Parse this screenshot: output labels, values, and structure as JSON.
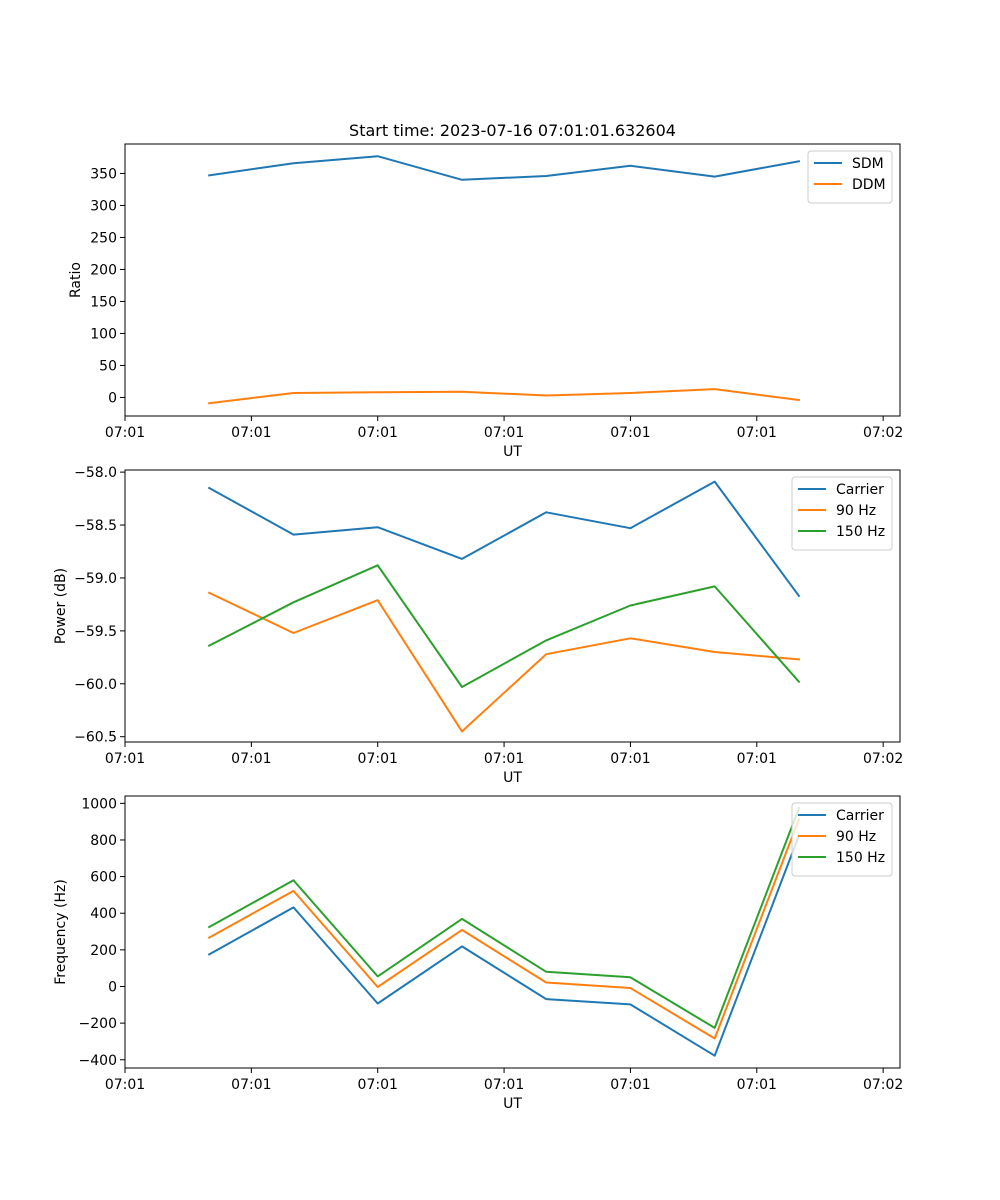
{
  "chart_data": [
    {
      "type": "line",
      "title": "Start time: 2023-07-16 07:01:01.632604",
      "xlabel": "UT",
      "ylabel": "Ratio",
      "xlim": [
        0,
        9.2
      ],
      "ylim": [
        -29,
        396
      ],
      "x": [
        1,
        2,
        3,
        4,
        5,
        6,
        7,
        8
      ],
      "xticks": [
        0,
        1.5,
        3,
        4.5,
        6,
        7.5,
        9
      ],
      "xtick_labels": [
        "07:01",
        "07:01",
        "07:01",
        "07:01",
        "07:01",
        "07:01",
        "07:02"
      ],
      "yticks": [
        0,
        50,
        100,
        150,
        200,
        250,
        300,
        350
      ],
      "legend_position": "top-right",
      "series": [
        {
          "name": "SDM",
          "color": "#1f77b4",
          "values": [
            347,
            366,
            377,
            340,
            346,
            362,
            345,
            369
          ]
        },
        {
          "name": "DDM",
          "color": "#ff7f0e",
          "values": [
            -9,
            7,
            8,
            9,
            3,
            7,
            13,
            -4
          ]
        }
      ]
    },
    {
      "type": "line",
      "title": "",
      "xlabel": "UT",
      "ylabel": "Power (dB)",
      "xlim": [
        0,
        9.2
      ],
      "ylim": [
        -60.55,
        -57.98
      ],
      "x": [
        1,
        2,
        3,
        4,
        5,
        6,
        7,
        8
      ],
      "xticks": [
        0,
        1.5,
        3,
        4.5,
        6,
        7.5,
        9
      ],
      "xtick_labels": [
        "07:01",
        "07:01",
        "07:01",
        "07:01",
        "07:01",
        "07:01",
        "07:02"
      ],
      "yticks": [
        -60.5,
        -60.0,
        -59.5,
        -59.0,
        -58.5,
        -58.0
      ],
      "ytick_labels": [
        "−60.5",
        "−60.0",
        "−59.5",
        "−59.0",
        "−58.5",
        "−58.0"
      ],
      "legend_position": "top-right",
      "series": [
        {
          "name": "Carrier",
          "color": "#1f77b4",
          "values": [
            -58.15,
            -58.59,
            -58.52,
            -58.82,
            -58.38,
            -58.53,
            -58.09,
            -59.17
          ]
        },
        {
          "name": "90 Hz",
          "color": "#ff7f0e",
          "values": [
            -59.14,
            -59.52,
            -59.21,
            -60.45,
            -59.72,
            -59.57,
            -59.7,
            -59.77
          ]
        },
        {
          "name": "150 Hz",
          "color": "#2ca02c",
          "values": [
            -59.64,
            -59.23,
            -58.88,
            -60.03,
            -59.59,
            -59.26,
            -59.08,
            -59.98
          ]
        }
      ]
    },
    {
      "type": "line",
      "title": "",
      "xlabel": "UT",
      "ylabel": "Frequency (Hz)",
      "xlim": [
        0,
        9.2
      ],
      "ylim": [
        -445,
        1040
      ],
      "x": [
        1,
        2,
        3,
        4,
        5,
        6,
        7,
        8
      ],
      "xticks": [
        0,
        1.5,
        3,
        4.5,
        6,
        7.5,
        9
      ],
      "xtick_labels": [
        "07:01",
        "07:01",
        "07:01",
        "07:01",
        "07:01",
        "07:01",
        "07:02"
      ],
      "yticks": [
        -400,
        -200,
        0,
        200,
        400,
        600,
        800,
        1000
      ],
      "ytick_labels": [
        "−400",
        "−200",
        "0",
        "200",
        "400",
        "600",
        "800",
        "1000"
      ],
      "legend_position": "top-right",
      "series": [
        {
          "name": "Carrier",
          "color": "#1f77b4",
          "values": [
            175,
            432,
            -93,
            219,
            -69,
            -98,
            -378,
            823
          ]
        },
        {
          "name": "90 Hz",
          "color": "#ff7f0e",
          "values": [
            267,
            522,
            -3,
            309,
            22,
            -8,
            -284,
            913
          ]
        },
        {
          "name": "150 Hz",
          "color": "#2ca02c",
          "values": [
            325,
            580,
            55,
            369,
            80,
            50,
            -226,
            973
          ]
        }
      ]
    }
  ]
}
